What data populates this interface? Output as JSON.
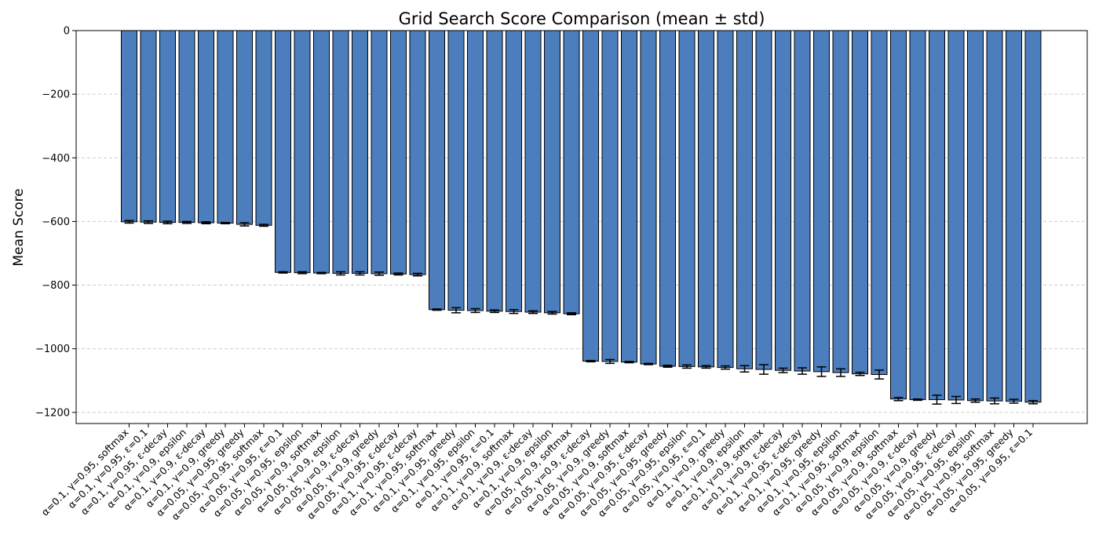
{
  "chart_data": {
    "type": "bar",
    "title": "Grid Search Score Comparison (mean ± std)",
    "xlabel": "",
    "ylabel": "Mean Score",
    "ylim": [
      -1235,
      0
    ],
    "yticks": [
      0,
      -200,
      -400,
      -600,
      -800,
      -1000,
      -1200
    ],
    "grid": "y-dashed",
    "bar_color": "#4c7ebd",
    "edge_color": "#000000",
    "categories": [
      "α=0.1, γ=0.95, softmax",
      "α=0.1, γ=0.95, ε=0.1",
      "α=0.1, γ=0.95, ε-decay",
      "α=0.1, γ=0.9, epsilon",
      "α=0.1, γ=0.9, ε-decay",
      "α=0.1, γ=0.9, greedy",
      "α=0.05, γ=0.95, greedy",
      "α=0.05, γ=0.95, softmax",
      "α=0.05, γ=0.95, ε=0.1",
      "α=0.05, γ=0.95, epsilon",
      "α=0.05, γ=0.9, softmax",
      "α=0.05, γ=0.9, epsilon",
      "α=0.05, γ=0.9, ε-decay",
      "α=0.05, γ=0.9, greedy",
      "α=0.05, γ=0.95, ε-decay",
      "α=0.1, γ=0.95, ε-decay",
      "α=0.1, γ=0.95, softmax",
      "α=0.1, γ=0.95, greedy",
      "α=0.1, γ=0.95, epsilon",
      "α=0.1, γ=0.95, ε=0.1",
      "α=0.1, γ=0.9, softmax",
      "α=0.1, γ=0.9, ε-decay",
      "α=0.1, γ=0.9, epsilon",
      "α=0.05, γ=0.9, softmax",
      "α=0.05, γ=0.9, ε-decay",
      "α=0.05, γ=0.9, greedy",
      "α=0.05, γ=0.9, softmax",
      "α=0.05, γ=0.95, ε-decay",
      "α=0.05, γ=0.95, greedy",
      "α=0.05, γ=0.95, epsilon",
      "α=0.05, γ=0.95, ε=0.1",
      "α=0.1, γ=0.9, greedy",
      "α=0.1, γ=0.9, epsilon",
      "α=0.1, γ=0.9, softmax",
      "α=0.1, γ=0.9, ε-decay",
      "α=0.1, γ=0.95, ε-decay",
      "α=0.1, γ=0.95, greedy",
      "α=0.1, γ=0.95, epsilon",
      "α=0.1, γ=0.95, softmax",
      "α=0.05, γ=0.9, epsilon",
      "α=0.05, γ=0.9, softmax",
      "α=0.05, γ=0.9, ε-decay",
      "α=0.05, γ=0.9, greedy",
      "α=0.05, γ=0.95, ε-decay",
      "α=0.05, γ=0.95, epsilon",
      "α=0.05, γ=0.95, softmax",
      "α=0.05, γ=0.95, greedy",
      "α=0.05, γ=0.95, ε=0.1"
    ],
    "values": [
      -601,
      -602,
      -603,
      -603,
      -604,
      -605,
      -609,
      -612,
      -760,
      -761,
      -762,
      -763,
      -763,
      -764,
      -765,
      -767,
      -877,
      -879,
      -880,
      -882,
      -883,
      -885,
      -887,
      -890,
      -1039,
      -1040,
      -1042,
      -1048,
      -1055,
      -1056,
      -1057,
      -1059,
      -1063,
      -1065,
      -1068,
      -1070,
      -1072,
      -1075,
      -1079,
      -1081,
      -1158,
      -1160,
      -1160,
      -1161,
      -1163,
      -1164,
      -1165,
      -1168
    ],
    "errors": [
      4,
      4,
      4,
      3,
      3,
      2,
      5,
      3,
      2,
      3,
      2,
      5,
      5,
      5,
      3,
      4,
      2,
      8,
      6,
      4,
      6,
      4,
      4,
      3,
      2,
      6,
      2,
      2,
      3,
      5,
      4,
      5,
      10,
      15,
      7,
      10,
      15,
      12,
      5,
      14,
      5,
      2,
      14,
      11,
      5,
      9,
      6,
      5
    ]
  }
}
